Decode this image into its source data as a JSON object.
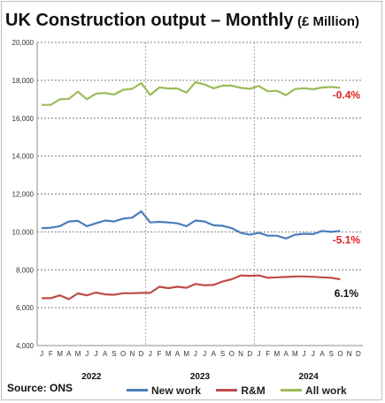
{
  "title": "UK Construction output – Monthly",
  "title_unit": "(£ Million)",
  "source_label": "Source: ONS",
  "colors": {
    "new_work": "#4a7ebb",
    "rm": "#be4b48",
    "all_work": "#9bbb59",
    "negative": "#e02020",
    "positive": "#111111"
  },
  "chart_data": {
    "type": "line",
    "ylim": [
      4000,
      20000
    ],
    "yticks": [
      4000,
      6000,
      8000,
      10000,
      12000,
      14000,
      16000,
      18000,
      20000
    ],
    "ytick_labels": [
      "4,000",
      "6,000",
      "8,000",
      "10,000",
      "12,000",
      "14,000",
      "16,000",
      "18,000",
      "20,000"
    ],
    "grid": true,
    "legend": "bottom",
    "month_labels": [
      "J",
      "F",
      "M",
      "A",
      "M",
      "J",
      "J",
      "A",
      "S",
      "O",
      "N",
      "D",
      "J",
      "F",
      "M",
      "A",
      "M",
      "J",
      "J",
      "A",
      "S",
      "O",
      "N",
      "D",
      "J",
      "F",
      "M",
      "A",
      "M",
      "J",
      "J",
      "A",
      "S",
      "O",
      "N",
      "D"
    ],
    "years": [
      "2022",
      "2023",
      "2024"
    ],
    "series": [
      {
        "name": "New work",
        "key": "new_work",
        "values": [
          10200,
          10220,
          10300,
          10550,
          10580,
          10300,
          10450,
          10600,
          10550,
          10700,
          10750,
          11080,
          10500,
          10530,
          10500,
          10450,
          10300,
          10600,
          10550,
          10350,
          10320,
          10200,
          9950,
          9850,
          9950,
          9800,
          9800,
          9650,
          9850,
          9900,
          9880,
          10050,
          10000,
          10050
        ],
        "end_label": "-5.1%"
      },
      {
        "name": "R&M",
        "key": "rm",
        "values": [
          6500,
          6500,
          6650,
          6450,
          6750,
          6650,
          6800,
          6700,
          6680,
          6760,
          6760,
          6780,
          6780,
          7100,
          7030,
          7100,
          7050,
          7250,
          7180,
          7200,
          7380,
          7500,
          7700,
          7680,
          7700,
          7580,
          7600,
          7620,
          7650,
          7650,
          7630,
          7600,
          7580,
          7500
        ],
        "end_label": "6.1%"
      },
      {
        "name": "All work",
        "key": "all_work",
        "values": [
          16700,
          16700,
          17000,
          17020,
          17400,
          17000,
          17300,
          17330,
          17250,
          17500,
          17550,
          17850,
          17230,
          17620,
          17570,
          17570,
          17350,
          17900,
          17780,
          17580,
          17720,
          17720,
          17600,
          17550,
          17700,
          17420,
          17450,
          17220,
          17540,
          17580,
          17530,
          17620,
          17650,
          17600
        ],
        "end_label": "-0.4%"
      }
    ]
  }
}
